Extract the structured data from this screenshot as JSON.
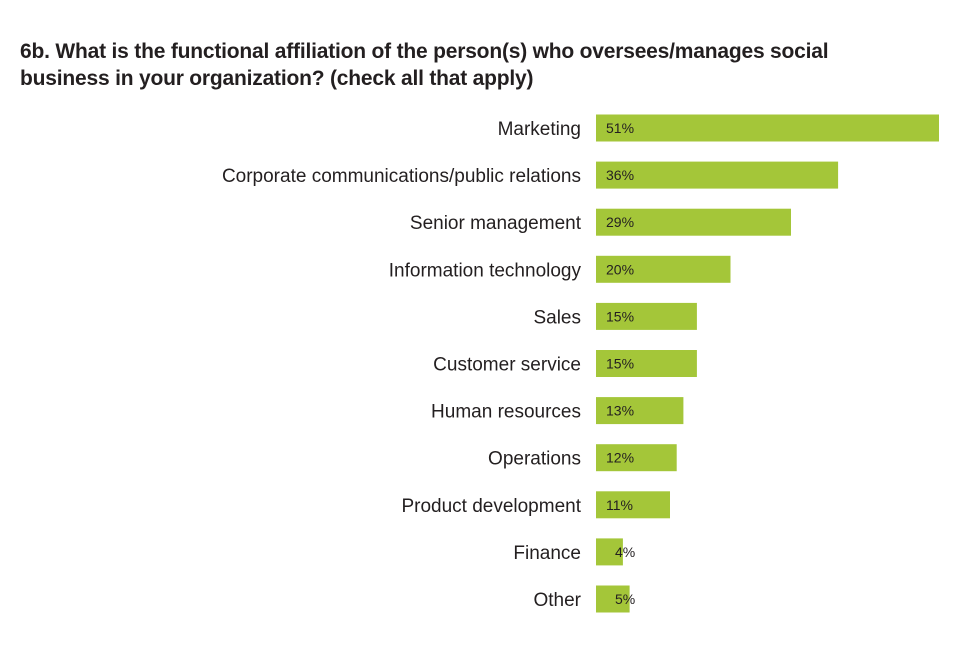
{
  "chart_data": {
    "type": "bar",
    "orientation": "horizontal",
    "title": "6b. What is the functional affiliation of the person(s) who oversees/manages social business in your organization? (check all that apply)",
    "categories": [
      "Marketing",
      "Corporate communications/public relations",
      "Senior management",
      "Information technology",
      "Sales",
      "Customer service",
      "Human resources",
      "Operations",
      "Product development",
      "Finance",
      "Other"
    ],
    "values": [
      51,
      36,
      29,
      20,
      15,
      15,
      13,
      12,
      11,
      4,
      5
    ],
    "value_labels": [
      "51%",
      "36%",
      "29%",
      "20%",
      "15%",
      "15%",
      "13%",
      "12%",
      "11%",
      "4%",
      "5%"
    ],
    "unit": "%",
    "xlim": [
      0,
      51
    ],
    "grid": false,
    "legend": "none",
    "bar_color": "#a4c639",
    "text_color": "#231f20"
  }
}
